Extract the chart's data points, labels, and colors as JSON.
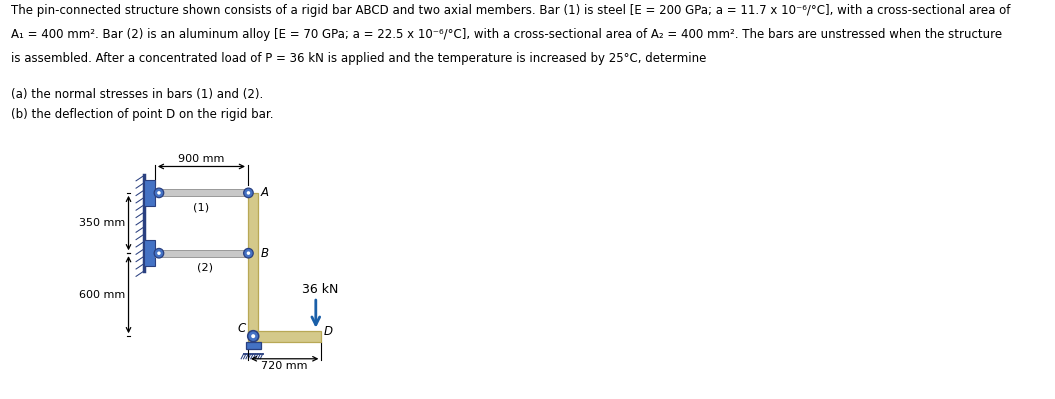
{
  "line1": "The pin-connected structure shown consists of a rigid bar ABCD and two axial members. Bar (1) is steel [E = 200 GPa; a = 11.7 x 10⁻⁶/°C], with a cross-sectional area of",
  "line2": "A₁ = 400 mm². Bar (2) is an aluminum alloy [E = 70 GPa; a = 22.5 x 10⁻⁶/°C], with a cross-sectional area of A₂ = 400 mm². The bars are unstressed when the structure",
  "line3": "is assembled. After a concentrated load of P = 36 kN is applied and the temperature is increased by 25°C, determine",
  "part_a": "(a) the normal stresses in bars (1) and (2).",
  "part_b": "(b) the deflection of point D on the rigid bar.",
  "bg_color": "#ffffff",
  "bar_fill": "#d4c98a",
  "bar_edge": "#b8a855",
  "member_fill": "#c8c8c8",
  "member_edge": "#999999",
  "pin_fill": "#4472c4",
  "pin_edge": "#2a4080",
  "wall_fill": "#4472c4",
  "wall_edge": "#2a4080",
  "arrow_color": "#1a5fa8",
  "dim_color": "#000000",
  "text_color": "#000000",
  "label_fontsize": 8.5,
  "diagram_fontsize": 8.5
}
